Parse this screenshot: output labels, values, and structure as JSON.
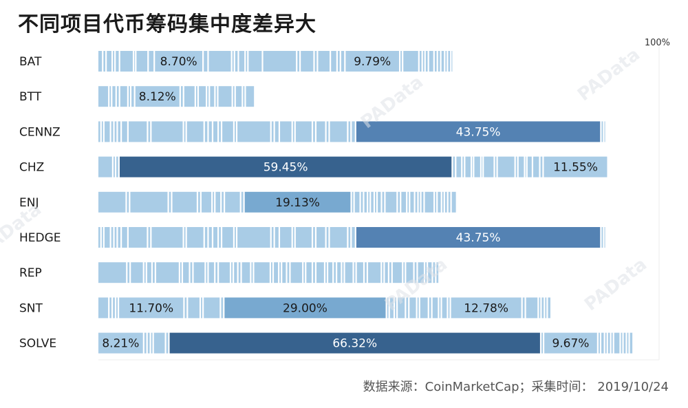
{
  "title": "不同项目代币筹码集中度差异大",
  "source": "数据来源：CoinMarketCap；采集时间： 2019/10/24",
  "axis_end_label": "100%",
  "watermark": "PAData",
  "colors": {
    "light": "#a9cce6",
    "mid": "#78a9d0",
    "midDark": "#5482b3",
    "dark": "#37628e",
    "text": "#1a1a1a",
    "textLight": "#ffffff"
  },
  "chart_data": {
    "type": "bar",
    "title": "不同项目代币筹码集中度差异大",
    "stacked": true,
    "xlim": [
      0,
      100
    ],
    "unit": "%",
    "categories": [
      "BAT",
      "BTT",
      "CENNZ",
      "CHZ",
      "ENJ",
      "HEDGE",
      "REP",
      "SNT",
      "SOLVE"
    ],
    "rows": [
      {
        "name": "BAT",
        "segments": [
          0.9,
          0.6,
          1.1,
          0.5,
          0.8,
          2.5,
          0.4,
          2.2,
          1.1,
          8.7,
          0.9,
          4.2,
          0.5,
          0.7,
          1.2,
          0.5,
          2.6,
          6.1,
          0.6,
          2.5,
          0.6,
          2.3,
          1.2,
          0.6,
          0.8,
          9.79,
          0.5,
          2.9,
          0.6,
          0.5,
          0.6,
          1.0,
          0.6,
          0.6,
          0.7,
          0.5,
          0.6,
          0.4
        ],
        "labeled": [
          9,
          25
        ]
      },
      {
        "name": "BTT",
        "segments": [
          2.0,
          0.5,
          0.8,
          0.6,
          1.5,
          0.5,
          0.7,
          8.12,
          0.6,
          2.1,
          0.5,
          1.5,
          0.5,
          1.0,
          0.5,
          2.6,
          0.5,
          1.3,
          0.5,
          1.7
        ],
        "labeled": [
          7
        ]
      },
      {
        "name": "CENNZ",
        "segments": [
          0.6,
          0.5,
          1.2,
          0.6,
          0.6,
          0.7,
          1.2,
          3.5,
          0.6,
          5.8,
          0.5,
          3.2,
          0.7,
          0.8,
          1.0,
          0.6,
          2.2,
          0.5,
          6.1,
          0.6,
          0.9,
          2.3,
          0.5,
          3.1,
          0.6,
          1.8,
          0.6,
          3.3,
          0.6,
          0.8,
          43.75,
          0.5,
          0.4
        ],
        "labeled": [
          30
        ]
      },
      {
        "name": "CHZ",
        "segments": [
          2.7,
          0.5,
          0.6,
          59.45,
          0.6,
          1.1,
          0.5,
          1.2,
          0.4,
          1.3,
          0.4,
          2.0,
          0.5,
          3.2,
          0.5,
          1.2,
          0.4,
          1.0,
          1.3,
          0.6,
          11.55
        ],
        "labeled": [
          3,
          20
        ]
      },
      {
        "name": "ENJ",
        "segments": [
          5.1,
          0.6,
          6.9,
          0.6,
          4.6,
          0.6,
          2.0,
          0.5,
          1.1,
          0.6,
          2.9,
          0.6,
          19.13,
          0.5,
          1.1,
          0.6,
          0.7,
          0.5,
          0.7,
          0.5,
          0.8,
          0.6,
          2.2,
          0.6,
          1.1,
          0.5,
          0.9,
          0.6,
          0.5,
          0.6,
          1.8,
          0.5,
          0.8,
          0.5,
          0.6,
          0.6,
          1.0
        ],
        "labeled": [
          12
        ]
      },
      {
        "name": "HEDGE",
        "segments": [
          0.6,
          0.5,
          1.2,
          0.6,
          0.6,
          0.7,
          1.2,
          3.5,
          0.6,
          5.8,
          0.5,
          3.2,
          0.7,
          0.8,
          1.0,
          0.6,
          2.2,
          0.5,
          6.1,
          0.6,
          0.9,
          2.3,
          0.5,
          3.1,
          0.6,
          1.8,
          0.6,
          3.3,
          0.6,
          0.8,
          43.75,
          0.5,
          0.4
        ],
        "labeled": [
          30
        ]
      },
      {
        "name": "REP",
        "segments": [
          5.2,
          0.6,
          2.4,
          0.5,
          1.0,
          0.6,
          4.3,
          0.5,
          1.3,
          0.6,
          2.2,
          0.5,
          1.2,
          0.6,
          2.2,
          0.5,
          0.8,
          0.6,
          1.7,
          0.5,
          3.0,
          0.5,
          1.0,
          0.5,
          0.9,
          0.6,
          2.3,
          0.5,
          1.2,
          0.6,
          1.6,
          0.5,
          1.0,
          0.6,
          0.9,
          0.5,
          1.6,
          0.5,
          1.4,
          0.6,
          2.5,
          0.5,
          0.8,
          0.6,
          1.9,
          0.5,
          1.5,
          0.6,
          1.3,
          0.5,
          0.9,
          0.6,
          0.6
        ],
        "labeled": []
      },
      {
        "name": "SNT",
        "segments": [
          2.0,
          0.6,
          0.6,
          0.5,
          11.7,
          0.6,
          2.3,
          0.5,
          3.1,
          0.6,
          29.0,
          0.5,
          0.9,
          0.5,
          1.5,
          0.6,
          1.4,
          0.5,
          1.6,
          0.6,
          1.2,
          0.5,
          1.1,
          0.5,
          12.78,
          0.6,
          2.3,
          0.5,
          0.6,
          0.5,
          0.7
        ],
        "labeled": [
          4,
          10,
          24
        ]
      },
      {
        "name": "SOLVE",
        "segments": [
          8.21,
          0.6,
          0.6,
          0.5,
          2.2,
          0.6,
          66.32,
          0.5,
          9.67,
          0.5,
          0.7,
          0.5,
          0.6,
          0.5,
          1.2,
          0.5,
          0.6,
          0.5,
          0.7
        ],
        "labeled": [
          0,
          6,
          8
        ]
      }
    ]
  }
}
